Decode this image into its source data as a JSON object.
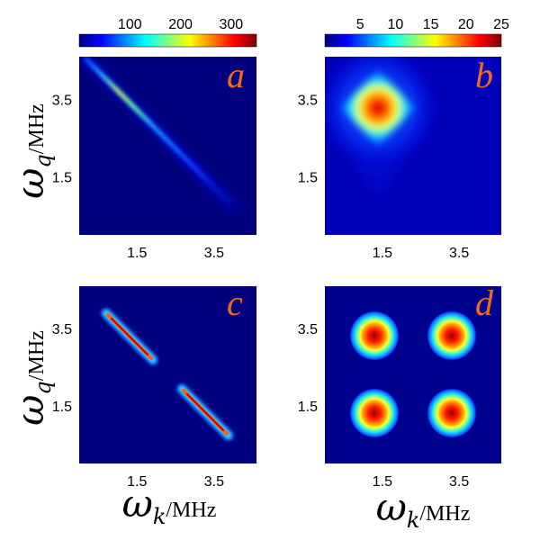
{
  "chart_data": [
    {
      "panel": "a",
      "type": "heatmap",
      "colormap": "jet",
      "colorbar": {
        "min": 0,
        "max": 350,
        "ticks": [
          100,
          200,
          300
        ]
      },
      "x_ticks": [
        1.5,
        3.5
      ],
      "y_ticks": [
        3.5,
        1.5
      ],
      "xlim": [
        0,
        4.6
      ],
      "ylim": [
        0,
        4.6
      ],
      "xlabel": "",
      "ylabel": "",
      "feature": {
        "shape": "anti-diagonal ridge",
        "peak": [
          1.2,
          3.6
        ],
        "peak_value": 200
      }
    },
    {
      "panel": "b",
      "type": "heatmap",
      "colormap": "jet",
      "colorbar": {
        "min": 0,
        "max": 25,
        "ticks": [
          5,
          10,
          15,
          20,
          25
        ]
      },
      "x_ticks": [
        1.5,
        3.5
      ],
      "y_ticks": [
        3.5,
        1.5
      ],
      "xlim": [
        0,
        4.6
      ],
      "ylim": [
        0,
        4.6
      ],
      "feature": {
        "shape": "single diamond spot",
        "peak": [
          1.5,
          3.5
        ],
        "peak_value": 24
      }
    },
    {
      "panel": "c",
      "type": "heatmap",
      "colormap": "jet",
      "colorbar": {
        "min": 0,
        "max": 350
      },
      "x_ticks": [
        1.5,
        3.5
      ],
      "y_ticks": [
        3.5,
        1.5
      ],
      "xlim": [
        0,
        4.6
      ],
      "ylim": [
        0,
        4.6
      ],
      "feature": {
        "shape": "two anti-diagonal streaks",
        "centers": [
          [
            1.5,
            3.5
          ],
          [
            3.5,
            1.5
          ]
        ],
        "peak_value": 330
      }
    },
    {
      "panel": "d",
      "type": "heatmap",
      "colormap": "jet",
      "colorbar": {
        "min": 0,
        "max": 25
      },
      "x_ticks": [
        1.5,
        3.5
      ],
      "y_ticks": [
        3.5,
        1.5
      ],
      "xlim": [
        0,
        4.6
      ],
      "ylim": [
        0,
        4.6
      ],
      "feature": {
        "shape": "four gaussian spots",
        "centers": [
          [
            1.5,
            3.5
          ],
          [
            3.5,
            3.5
          ],
          [
            1.5,
            1.5
          ],
          [
            3.5,
            1.5
          ]
        ],
        "peak_value": 24
      }
    }
  ],
  "labels": {
    "y_axis": {
      "symbol": "ω",
      "subscript": "q",
      "unit": "/MHz"
    },
    "x_axis": {
      "symbol": "ω",
      "subscript": "k",
      "unit": "/MHz"
    }
  },
  "colors": {
    "jet_stops": [
      "#00007f",
      "#0000ff",
      "#007fff",
      "#00ffff",
      "#7fff7f",
      "#ffff00",
      "#ff7f00",
      "#ff0000",
      "#7f0000"
    ],
    "panel_letter": "#f26a1b",
    "background": "#ffffff"
  }
}
